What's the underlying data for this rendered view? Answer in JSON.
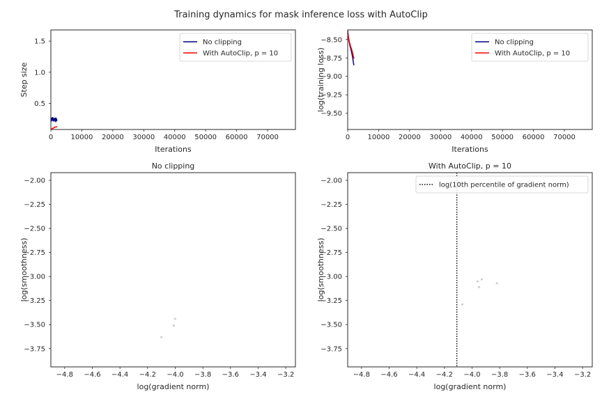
{
  "title": "Training dynamics for mask inference loss with AutoClip",
  "chart_data": [
    {
      "id": "step_size",
      "type": "line",
      "title": "",
      "xlabel": "Iterations",
      "ylabel": "Step size",
      "xlim": [
        0,
        79000
      ],
      "ylim": [
        0.08,
        1.68
      ],
      "xticks": [
        0,
        10000,
        20000,
        30000,
        40000,
        50000,
        60000,
        70000
      ],
      "xtick_labels": [
        "0",
        "10000",
        "20000",
        "30000",
        "40000",
        "50000",
        "60000",
        "70000"
      ],
      "yticks": [
        0.5,
        1.0,
        1.5
      ],
      "ytick_labels": [
        "0.5",
        "1.0",
        "1.5"
      ],
      "legend": "top-right",
      "series": [
        {
          "name": "No clipping",
          "color": "#00007f",
          "x": [
            0,
            200,
            400,
            600,
            800,
            1000,
            1200,
            1400,
            1600,
            1800,
            2000
          ],
          "y": [
            0.2,
            0.27,
            0.22,
            0.28,
            0.21,
            0.26,
            0.23,
            0.27,
            0.2,
            0.25,
            0.22
          ]
        },
        {
          "name": "With AutoClip, p = 10",
          "color": "#ff0000",
          "x": [
            0,
            200,
            400,
            600,
            800,
            1000,
            1200,
            1400,
            1600,
            1800,
            2000
          ],
          "y": [
            0.08,
            0.09,
            0.09,
            0.1,
            0.1,
            0.11,
            0.11,
            0.12,
            0.12,
            0.12,
            0.13
          ]
        }
      ]
    },
    {
      "id": "training_loss",
      "type": "line",
      "title": "",
      "xlabel": "Iterations",
      "ylabel": "log(training loss)",
      "xlim": [
        0,
        79000
      ],
      "ylim": [
        -9.72,
        -8.37
      ],
      "xticks": [
        0,
        10000,
        20000,
        30000,
        40000,
        50000,
        60000,
        70000
      ],
      "xtick_labels": [
        "0",
        "10000",
        "20000",
        "30000",
        "40000",
        "50000",
        "60000",
        "70000"
      ],
      "yticks": [
        -8.5,
        -8.75,
        -9.0,
        -9.25,
        -9.5
      ],
      "ytick_labels": [
        "−8.50",
        "−8.75",
        "−9.00",
        "−9.25",
        "−9.50"
      ],
      "legend": "top-right",
      "series": [
        {
          "name": "No clipping",
          "color": "#00007f",
          "x": [
            0,
            200,
            400,
            600,
            800,
            1000,
            1200,
            1400,
            1600,
            1800,
            2000
          ],
          "y": [
            -8.38,
            -8.45,
            -8.52,
            -8.56,
            -8.6,
            -8.62,
            -8.66,
            -8.7,
            -8.74,
            -8.8,
            -8.85
          ]
        },
        {
          "name": "With AutoClip, p = 10",
          "color": "#ff0000",
          "x": [
            0,
            200,
            400,
            600,
            800,
            1000,
            1200,
            1400,
            1600,
            1800,
            2000
          ],
          "y": [
            -8.38,
            -8.46,
            -8.5,
            -8.54,
            -8.57,
            -8.6,
            -8.62,
            -8.65,
            -8.68,
            -8.72,
            -8.76
          ]
        }
      ]
    },
    {
      "id": "no_clipping_scatter",
      "type": "scatter",
      "title": "No clipping",
      "xlabel": "log(gradient norm)",
      "ylabel": "log(smoothness)",
      "xlim": [
        -4.9,
        -3.13
      ],
      "ylim": [
        -3.94,
        -1.92
      ],
      "xticks": [
        -4.8,
        -4.6,
        -4.4,
        -4.2,
        -4.0,
        -3.8,
        -3.6,
        -3.4,
        -3.2
      ],
      "xtick_labels": [
        "−4.8",
        "−4.6",
        "−4.4",
        "−4.2",
        "−4.0",
        "−3.8",
        "−3.6",
        "−3.4",
        "−3.2"
      ],
      "yticks": [
        -2.0,
        -2.25,
        -2.5,
        -2.75,
        -3.0,
        -3.25,
        -3.5,
        -3.75
      ],
      "ytick_labels": [
        "−2.00",
        "−2.25",
        "−2.50",
        "−2.75",
        "−3.00",
        "−3.25",
        "−3.50",
        "−3.75"
      ],
      "series": [
        {
          "name": "",
          "color": "#d0d0d0",
          "x": [
            -4.1,
            -4.01,
            -4.0
          ],
          "y": [
            -3.63,
            -3.51,
            -3.44
          ]
        }
      ]
    },
    {
      "id": "autoclip_scatter",
      "type": "scatter",
      "title": "With AutoClip, p = 10",
      "xlabel": "log(gradient norm)",
      "ylabel": "log(smoothness)",
      "xlim": [
        -4.9,
        -3.13
      ],
      "ylim": [
        -3.94,
        -1.92
      ],
      "xticks": [
        -4.8,
        -4.6,
        -4.4,
        -4.2,
        -4.0,
        -3.8,
        -3.6,
        -3.4,
        -3.2
      ],
      "xtick_labels": [
        "−4.8",
        "−4.6",
        "−4.4",
        "−4.2",
        "−4.0",
        "−3.8",
        "−3.6",
        "−3.4",
        "−3.2"
      ],
      "yticks": [
        -2.0,
        -2.25,
        -2.5,
        -2.75,
        -3.0,
        -3.25,
        -3.5,
        -3.75
      ],
      "ytick_labels": [
        "−2.00",
        "−2.25",
        "−2.50",
        "−2.75",
        "−3.00",
        "−3.25",
        "−3.50",
        "−3.75"
      ],
      "legend": "top-right",
      "vline": {
        "x": -4.11,
        "label": "log(10th percentile of gradient norm)",
        "color": "#000000"
      },
      "series": [
        {
          "name": "",
          "color": "#d0d0d0",
          "x": [
            -4.07,
            -3.96,
            -3.95,
            -3.93,
            -3.82
          ],
          "y": [
            -3.29,
            -3.05,
            -3.11,
            -3.03,
            -3.07
          ]
        }
      ]
    }
  ]
}
